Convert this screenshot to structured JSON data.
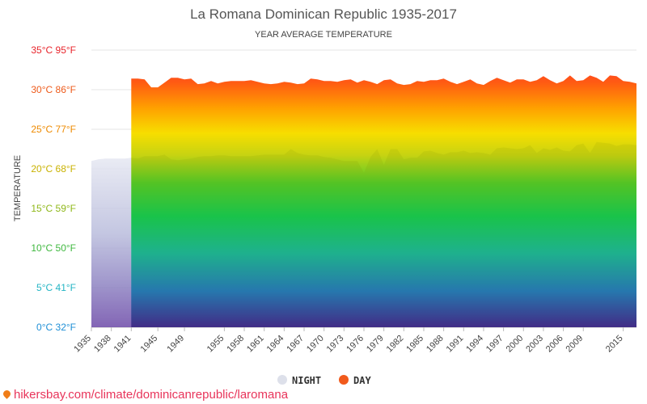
{
  "chart_data": {
    "type": "area",
    "title": "La Romana Dominican Republic 1935-2017",
    "subtitle": "YEAR AVERAGE TEMPERATURE",
    "ylabel": "TEMPERATURE",
    "ylim": [
      0,
      35
    ],
    "y_ticks": [
      {
        "value": 0,
        "label": "0°C 32°F",
        "color": "#1e8fd6"
      },
      {
        "value": 5,
        "label": "5°C 41°F",
        "color": "#23b5c4"
      },
      {
        "value": 10,
        "label": "10°C 50°F",
        "color": "#3fb83f"
      },
      {
        "value": 15,
        "label": "15°C 59°F",
        "color": "#8fb81a"
      },
      {
        "value": 20,
        "label": "20°C 68°F",
        "color": "#c9b200"
      },
      {
        "value": 25,
        "label": "25°C 77°F",
        "color": "#ee8a00"
      },
      {
        "value": 30,
        "label": "30°C 86°F",
        "color": "#ee5a1a"
      },
      {
        "value": 35,
        "label": "35°C 95°F",
        "color": "#e8242b"
      }
    ],
    "x_tick_labels": [
      "1935",
      "1938",
      "1941",
      "1945",
      "1949",
      "1955",
      "1958",
      "1961",
      "1964",
      "1967",
      "1970",
      "1973",
      "1976",
      "1979",
      "1982",
      "1985",
      "1988",
      "1991",
      "1994",
      "1997",
      "2000",
      "2003",
      "2006",
      "2009",
      "2015"
    ],
    "years": [
      1935,
      1936,
      1937,
      1938,
      1939,
      1940,
      1941,
      1942,
      1943,
      1944,
      1945,
      1946,
      1947,
      1948,
      1949,
      1950,
      1951,
      1952,
      1953,
      1954,
      1955,
      1956,
      1957,
      1958,
      1959,
      1960,
      1961,
      1962,
      1963,
      1964,
      1965,
      1966,
      1967,
      1968,
      1969,
      1970,
      1971,
      1972,
      1973,
      1974,
      1975,
      1976,
      1977,
      1978,
      1979,
      1980,
      1981,
      1982,
      1983,
      1984,
      1985,
      1986,
      1987,
      1988,
      1989,
      1990,
      1991,
      1992,
      1993,
      1994,
      1995,
      1996,
      1997,
      1998,
      1999,
      2000,
      2001,
      2002,
      2003,
      2004,
      2005,
      2006,
      2007,
      2008,
      2009,
      2010,
      2011,
      2012,
      2013,
      2014,
      2015,
      2016,
      2017
    ],
    "series": [
      {
        "name": "NIGHT",
        "color": "#dde0ea",
        "values": [
          21.0,
          21.2,
          21.3,
          21.3,
          21.3,
          21.3,
          21.4,
          21.3,
          21.6,
          21.6,
          21.6,
          21.8,
          21.2,
          21.1,
          21.2,
          21.3,
          21.5,
          21.6,
          21.6,
          21.7,
          21.7,
          21.6,
          21.6,
          21.6,
          21.6,
          21.7,
          21.8,
          21.8,
          21.8,
          21.8,
          22.5,
          22.0,
          21.8,
          21.7,
          21.7,
          21.5,
          21.4,
          21.2,
          21.0,
          21.0,
          21.0,
          19.5,
          21.5,
          22.5,
          20.5,
          22.5,
          22.5,
          21.2,
          21.4,
          21.4,
          22.2,
          22.3,
          22.0,
          21.8,
          22.1,
          22.1,
          22.3,
          22.0,
          22.1,
          22.0,
          21.8,
          22.6,
          22.7,
          22.6,
          22.5,
          22.6,
          23.0,
          22.0,
          22.6,
          22.4,
          22.7,
          22.3,
          22.2,
          23.0,
          23.2,
          22.0,
          23.4,
          23.3,
          23.2,
          22.9,
          23.1,
          23.1,
          23.0
        ]
      },
      {
        "name": "DAY",
        "color": "#f15a1c",
        "values": [
          null,
          null,
          null,
          null,
          null,
          null,
          31.4,
          31.4,
          31.3,
          30.3,
          30.3,
          30.9,
          31.5,
          31.5,
          31.3,
          31.4,
          30.7,
          30.8,
          31.1,
          30.8,
          31.0,
          31.1,
          31.1,
          31.1,
          31.2,
          31.0,
          30.8,
          30.7,
          30.8,
          31.0,
          30.9,
          30.7,
          30.8,
          31.4,
          31.3,
          31.1,
          31.1,
          31.0,
          31.2,
          31.3,
          30.9,
          31.2,
          31.0,
          30.7,
          31.2,
          31.3,
          30.8,
          30.6,
          30.7,
          31.1,
          31.0,
          31.2,
          31.2,
          31.4,
          31.0,
          30.7,
          31.0,
          31.3,
          30.8,
          30.6,
          31.1,
          31.5,
          31.2,
          30.9,
          31.3,
          31.3,
          31.0,
          31.2,
          31.7,
          31.2,
          30.8,
          31.1,
          31.8,
          31.1,
          31.2,
          31.8,
          31.5,
          31.0,
          31.8,
          31.7,
          31.1,
          31.0,
          30.8
        ]
      }
    ],
    "legend": [
      {
        "label": "NIGHT",
        "color": "#dde0ea"
      },
      {
        "label": "DAY",
        "color": "#f15a1c"
      }
    ],
    "legend_position": "bottom-center",
    "grid": true
  },
  "watermark": "hikersbay.com/climate/dominicanrepublic/laromana"
}
